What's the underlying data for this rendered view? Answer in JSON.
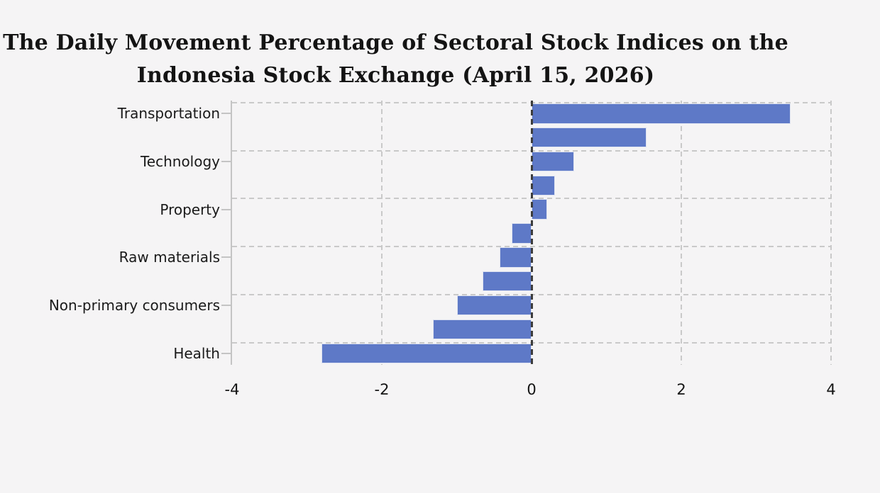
{
  "title": {
    "line1": "The Daily Movement Percentage of Sectoral Stock Indices on the",
    "line2": "Indonesia Stock Exchange (April 15, 2026)"
  },
  "chart_data": {
    "type": "bar",
    "orientation": "horizontal",
    "title": "The Daily Movement Percentage of Sectoral Stock Indices on the Indonesia Stock Exchange (April 15, 2026)",
    "note_on_categories": "11 bars top-to-bottom; only every other bar carries an axis label",
    "categories": [
      "Transportation",
      "",
      "Technology",
      "",
      "Property",
      "",
      "Raw materials",
      "",
      "Non-primary consumers",
      "",
      "Health"
    ],
    "values": [
      3.46,
      1.54,
      0.57,
      0.31,
      0.21,
      -0.27,
      -0.43,
      -0.65,
      -1.0,
      -1.32,
      -2.81
    ],
    "xlabel": "",
    "ylabel": "",
    "xlim": [
      -4,
      4
    ],
    "x_ticks": [
      -4,
      -2,
      0,
      2,
      4
    ],
    "x_tick_labels": [
      "-4",
      "-2",
      "0",
      "2",
      "4"
    ],
    "grid": "dashed",
    "zero_line": true,
    "legend": "none",
    "unit": "percent"
  },
  "colors": {
    "background": "#f5f4f5",
    "bar": "#5e79c7",
    "gridline": "#c9c9c9",
    "zero_line": "#3d3d3d",
    "axis_spine": "#c4c4c4",
    "text": "#1a1a1a"
  }
}
